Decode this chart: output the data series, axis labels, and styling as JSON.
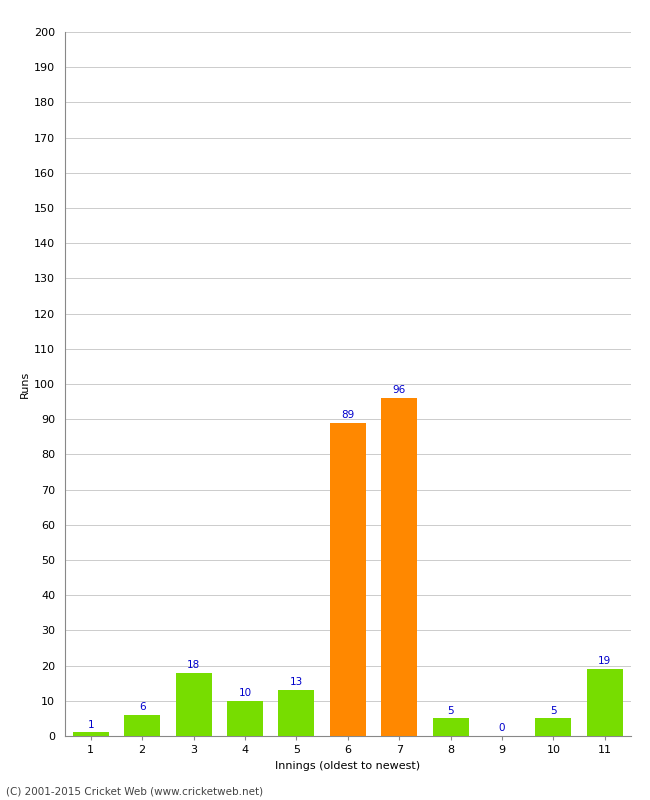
{
  "innings": [
    1,
    2,
    3,
    4,
    5,
    6,
    7,
    8,
    9,
    10,
    11
  ],
  "runs": [
    1,
    6,
    18,
    10,
    13,
    89,
    96,
    5,
    0,
    5,
    19
  ],
  "bar_colors": [
    "#77dd00",
    "#77dd00",
    "#77dd00",
    "#77dd00",
    "#77dd00",
    "#ff8800",
    "#ff8800",
    "#77dd00",
    "#77dd00",
    "#77dd00",
    "#77dd00"
  ],
  "xlabel": "Innings (oldest to newest)",
  "ylabel": "Runs",
  "ylim": [
    0,
    200
  ],
  "yticks": [
    0,
    10,
    20,
    30,
    40,
    50,
    60,
    70,
    80,
    90,
    100,
    110,
    120,
    130,
    140,
    150,
    160,
    170,
    180,
    190,
    200
  ],
  "label_color": "#0000cc",
  "label_fontsize": 7.5,
  "axis_label_fontsize": 8,
  "tick_fontsize": 8,
  "footer": "(C) 2001-2015 Cricket Web (www.cricketweb.net)",
  "footer_fontsize": 7.5,
  "background_color": "#ffffff",
  "grid_color": "#cccccc"
}
